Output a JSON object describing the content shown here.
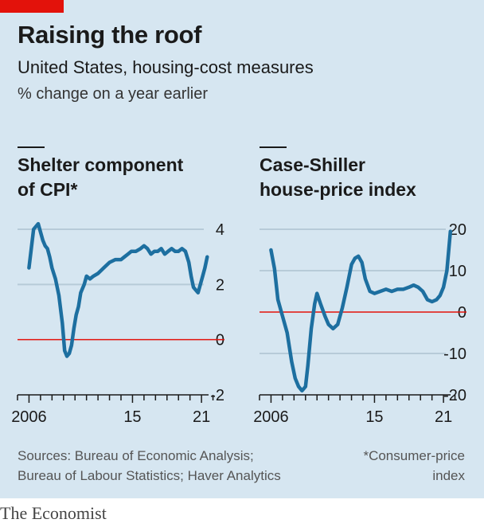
{
  "header": {
    "title": "Raising the roof",
    "subtitle": "United States, housing-cost measures",
    "unit": "% change on a year earlier"
  },
  "colors": {
    "line": "#1d6fa0",
    "zero": "#e3120b",
    "grid": "#b7cbd8",
    "background": "#d6e6f1",
    "brand": "#e3120b"
  },
  "chart_data": [
    {
      "type": "line",
      "title": "Shelter component of CPI*",
      "title_lines": [
        "Shelter component",
        "of CPI*"
      ],
      "ylim": [
        -2,
        4
      ],
      "yticks": [
        4,
        2,
        0,
        -2
      ],
      "xlim": [
        2005,
        2023
      ],
      "xticks": [
        {
          "v": 2006,
          "label": "2006"
        },
        {
          "v": 2015,
          "label": "15"
        },
        {
          "v": 2021,
          "label": "21"
        }
      ],
      "series": [
        {
          "x": [
            2006.0,
            2006.2,
            2006.4,
            2006.6,
            2006.8,
            2007.0,
            2007.2,
            2007.4,
            2007.6,
            2007.8,
            2008.0,
            2008.3,
            2008.6,
            2008.9,
            2009.1,
            2009.3,
            2009.5,
            2009.7,
            2009.9,
            2010.1,
            2010.3,
            2010.5,
            2010.8,
            2011.0,
            2011.3,
            2011.6,
            2012.0,
            2012.5,
            2013.0,
            2013.5,
            2014.0,
            2014.3,
            2014.6,
            2014.9,
            2015.3,
            2015.7,
            2016.0,
            2016.3,
            2016.6,
            2016.9,
            2017.2,
            2017.5,
            2017.8,
            2018.1,
            2018.4,
            2018.7,
            2019.0,
            2019.3,
            2019.6,
            2019.9,
            2020.1,
            2020.3,
            2020.5,
            2020.7,
            2020.9,
            2021.1,
            2021.3,
            2021.5
          ],
          "y": [
            2.6,
            3.3,
            4.0,
            4.1,
            4.2,
            3.9,
            3.6,
            3.4,
            3.3,
            3.0,
            2.6,
            2.2,
            1.6,
            0.6,
            -0.4,
            -0.6,
            -0.5,
            -0.2,
            0.4,
            0.9,
            1.2,
            1.7,
            2.0,
            2.3,
            2.2,
            2.3,
            2.4,
            2.6,
            2.8,
            2.9,
            2.9,
            3.0,
            3.1,
            3.2,
            3.2,
            3.3,
            3.4,
            3.3,
            3.1,
            3.2,
            3.2,
            3.3,
            3.1,
            3.2,
            3.3,
            3.2,
            3.2,
            3.3,
            3.2,
            2.8,
            2.3,
            1.9,
            1.8,
            1.7,
            2.0,
            2.3,
            2.6,
            3.0
          ]
        }
      ],
      "zero_line": 0
    },
    {
      "type": "line",
      "title": "Case-Shiller house-price index",
      "title_lines": [
        "Case-Shiller",
        "house-price index"
      ],
      "ylim": [
        -20,
        20
      ],
      "yticks": [
        {
          "v": 20,
          "label": "20"
        },
        {
          "v": 10,
          "label": "10"
        },
        {
          "v": 0,
          "label": "0"
        },
        {
          "v": -10,
          "label": "-10"
        },
        {
          "v": -20,
          "label": "-20"
        }
      ],
      "xlim": [
        2005,
        2023
      ],
      "xticks": [
        {
          "v": 2006,
          "label": "2006"
        },
        {
          "v": 2015,
          "label": "15"
        },
        {
          "v": 2021,
          "label": "21"
        }
      ],
      "series": [
        {
          "x": [
            2006.0,
            2006.3,
            2006.6,
            2007.0,
            2007.4,
            2007.8,
            2008.1,
            2008.4,
            2008.7,
            2009.0,
            2009.2,
            2009.5,
            2009.8,
            2010.0,
            2010.3,
            2010.7,
            2011.0,
            2011.4,
            2011.8,
            2012.2,
            2012.6,
            2013.0,
            2013.3,
            2013.6,
            2013.9,
            2014.2,
            2014.6,
            2015.0,
            2015.5,
            2016.0,
            2016.5,
            2017.0,
            2017.5,
            2018.0,
            2018.4,
            2018.8,
            2019.2,
            2019.6,
            2020.0,
            2020.4,
            2020.7,
            2021.0,
            2021.3,
            2021.6
          ],
          "y": [
            15.0,
            10.5,
            3.0,
            -1.0,
            -5.0,
            -12.0,
            -16.0,
            -18.0,
            -19.0,
            -18.0,
            -13.0,
            -4.0,
            2.0,
            4.5,
            2.0,
            -1.0,
            -3.0,
            -4.0,
            -3.0,
            1.0,
            6.0,
            11.5,
            13.0,
            13.5,
            12.0,
            8.0,
            5.0,
            4.5,
            5.0,
            5.5,
            5.0,
            5.5,
            5.5,
            6.0,
            6.5,
            6.0,
            5.0,
            3.0,
            2.5,
            3.0,
            4.0,
            6.0,
            10.0,
            19.5
          ]
        }
      ],
      "zero_line": 0
    }
  ],
  "footer": {
    "source_line1": "Sources: Bureau of Economic Analysis;",
    "source_line2": "Bureau of Labour Statistics; Haver Analytics",
    "note_line1": "*Consumer-price",
    "note_line2": "index",
    "brand": "The Economist"
  }
}
